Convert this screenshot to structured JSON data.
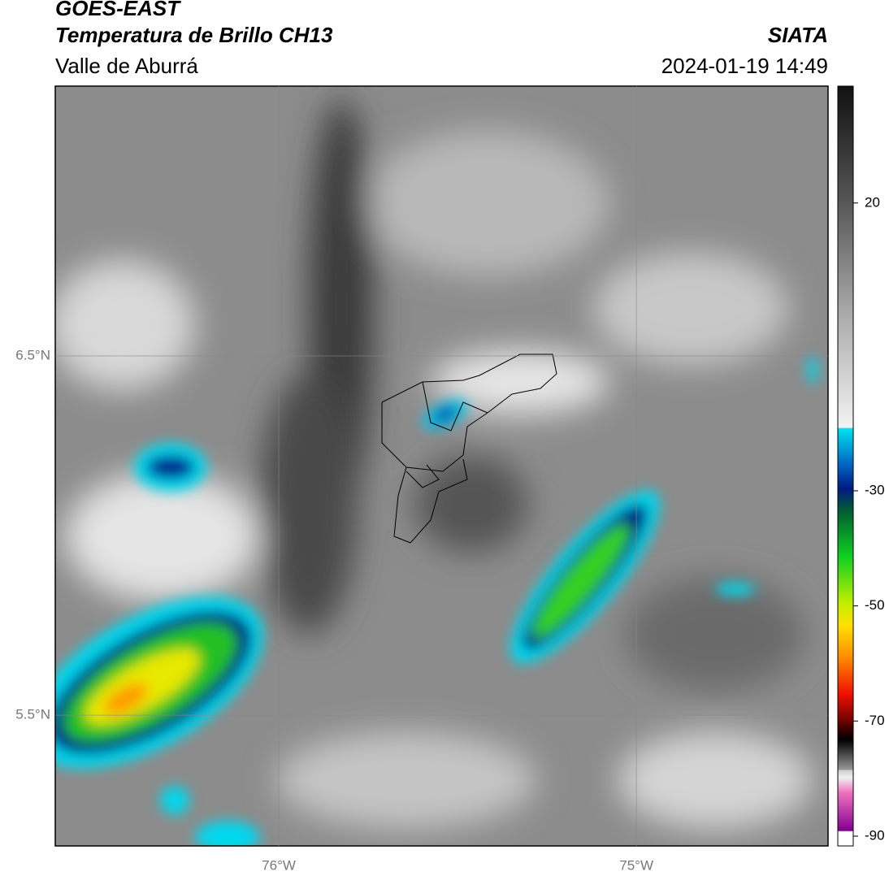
{
  "header": {
    "title": "GOES-EAST",
    "subtitle": "Temperatura de Brillo CH13",
    "region": "Valle de Aburrá",
    "source": "SIATA",
    "datetime": "2024-01-19 14:49"
  },
  "map": {
    "latlim": [
      5.136,
      7.251
    ],
    "lonlim": [
      -76.625,
      -74.464
    ],
    "latticks": [
      {
        "value": 6.5,
        "label": "6.5°N"
      },
      {
        "value": 5.5,
        "label": "5.5°N"
      }
    ],
    "lonticks": [
      {
        "value": -76,
        "label": "76°W"
      },
      {
        "value": -75,
        "label": "75°W"
      }
    ]
  },
  "colorbar": {
    "lim": [
      -91.7,
      40.3
    ],
    "ticks": [
      20,
      -30,
      -50,
      -70,
      -90
    ]
  }
}
